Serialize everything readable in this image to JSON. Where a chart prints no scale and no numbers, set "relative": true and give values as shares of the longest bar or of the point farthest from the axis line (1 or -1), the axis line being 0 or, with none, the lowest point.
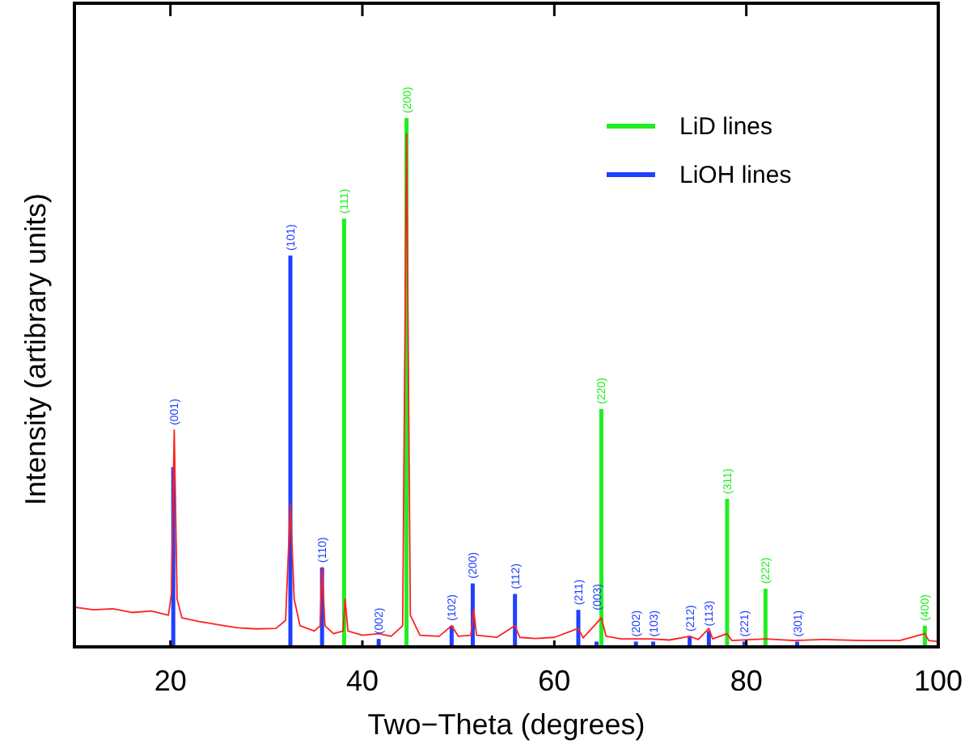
{
  "chart_data": {
    "type": "line",
    "xlabel": "Two−Theta (degrees)",
    "ylabel": "Intensity (artibrary units)",
    "relative": true,
    "xlim": [
      10,
      100
    ],
    "xticks": [
      20,
      40,
      60,
      80,
      100
    ],
    "tick_labels": "x",
    "legend": "top right",
    "series": [
      {
        "type": "line",
        "color": "#ff2020",
        "x": [
          10,
          12,
          14,
          16,
          18,
          19.8,
          20.1,
          20.4,
          20.7,
          21.2,
          23,
          25,
          27,
          29,
          31,
          32,
          32.5,
          32.9,
          33.5,
          35,
          35.6,
          35.8,
          36.1,
          37,
          38,
          38.2,
          38.5,
          40,
          41.7,
          43,
          44.2,
          44.6,
          45,
          46,
          48,
          49.3,
          50,
          51.3,
          51.6,
          51.9,
          54,
          55.9,
          56.4,
          58,
          60,
          62.5,
          63,
          64.9,
          65.4,
          67,
          70,
          72,
          74.1,
          75,
          76.1,
          76.5,
          78,
          78.5,
          82,
          85,
          88,
          92,
          96,
          98.6,
          99,
          100
        ],
        "values": [
          0.075,
          0.07,
          0.072,
          0.065,
          0.068,
          0.06,
          0.1,
          0.41,
          0.09,
          0.055,
          0.048,
          0.042,
          0.036,
          0.034,
          0.035,
          0.05,
          0.27,
          0.09,
          0.04,
          0.03,
          0.04,
          0.15,
          0.04,
          0.025,
          0.03,
          0.09,
          0.03,
          0.022,
          0.025,
          0.02,
          0.04,
          0.97,
          0.06,
          0.022,
          0.02,
          0.04,
          0.02,
          0.022,
          0.07,
          0.022,
          0.018,
          0.04,
          0.018,
          0.016,
          0.018,
          0.035,
          0.017,
          0.055,
          0.02,
          0.015,
          0.015,
          0.013,
          0.02,
          0.014,
          0.035,
          0.015,
          0.025,
          0.012,
          0.015,
          0.012,
          0.014,
          0.012,
          0.012,
          0.025,
          0.012,
          0.01
        ]
      },
      {
        "type": "bar",
        "name": "LiD lines",
        "color": "#22ee22",
        "x": [
          38.1,
          44.6,
          64.9,
          78,
          82,
          98.6
        ],
        "values": [
          0.81,
          1,
          0.45,
          0.28,
          0.11,
          0.04
        ]
      },
      {
        "type": "bar",
        "name": "LiOH lines",
        "color": "#2040ff",
        "x": [
          20.3,
          32.5,
          35.8,
          41.7,
          49.3,
          51.5,
          55.9,
          62.5,
          64.4,
          68.5,
          70.3,
          74.1,
          76.1,
          79.8,
          85.3
        ],
        "values": [
          0.34,
          0.74,
          0.15,
          0.015,
          0.04,
          0.12,
          0.1,
          0.07,
          0.01,
          0.01,
          0.01,
          0.02,
          0.03,
          0.01,
          0.01
        ]
      }
    ],
    "annotations": [
      {
        "text": "(111)",
        "x": 38.1,
        "y": 0.81
      },
      {
        "text": "(200)",
        "x": 44.6,
        "y": 1
      },
      {
        "text": "(220)",
        "x": 64.9,
        "y": 0.45
      },
      {
        "text": "(311)",
        "x": 78,
        "y": 0.28
      },
      {
        "text": "(222)",
        "x": 82,
        "y": 0.11
      },
      {
        "text": "(400)",
        "x": 98.6,
        "y": 0.04
      },
      {
        "text": "(001)",
        "x": 20.4,
        "y": 0.41
      },
      {
        "text": "(101)",
        "x": 32.5,
        "y": 0.74
      },
      {
        "text": "(110)",
        "x": 35.8,
        "y": 0.15
      },
      {
        "text": "(002)",
        "x": 41.7,
        "y": 0.015
      },
      {
        "text": "(102)",
        "x": 49.3,
        "y": 0.04
      },
      {
        "text": "(200)",
        "x": 51.5,
        "y": 0.12
      },
      {
        "text": "(112)",
        "x": 55.9,
        "y": 0.1
      },
      {
        "text": "(211)",
        "x": 62.5,
        "y": 0.07
      },
      {
        "text": "(003)",
        "x": 64.4,
        "y": 0.06
      },
      {
        "text": "(202)",
        "x": 68.5,
        "y": 0.01
      },
      {
        "text": "(103)",
        "x": 70.3,
        "y": 0.01
      },
      {
        "text": "(212)",
        "x": 74.1,
        "y": 0.02
      },
      {
        "text": "(113)",
        "x": 76.1,
        "y": 0.03
      },
      {
        "text": "(221)",
        "x": 79.8,
        "y": 0.01
      },
      {
        "text": "(301)",
        "x": 85.3,
        "y": 0.01
      }
    ]
  }
}
